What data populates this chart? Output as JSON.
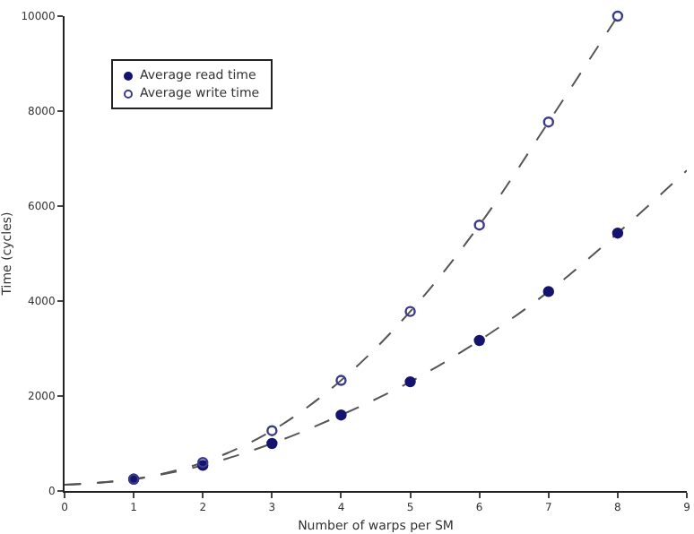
{
  "chart_data": {
    "type": "scatter",
    "xlabel": "Number of warps per SM",
    "ylabel": "Time (cycles)",
    "xlim": [
      0,
      9
    ],
    "xticks": [
      0,
      1,
      2,
      3,
      4,
      5,
      6,
      7,
      8,
      9
    ],
    "ylim": [
      0,
      10000
    ],
    "yticks": [
      0,
      2000,
      4000,
      6000,
      8000,
      10000
    ],
    "grid": false,
    "legend": "top left",
    "series": [
      {
        "name": "Average read time",
        "color": "#14146e",
        "marker": "circle",
        "x": [
          1,
          2,
          3,
          4,
          5,
          6,
          7,
          8
        ],
        "values": [
          250,
          540,
          1000,
          1600,
          2300,
          3170,
          4200,
          5430
        ]
      },
      {
        "name": "Average write time",
        "color": "#3a3a8c",
        "marker": "circle-open",
        "x": [
          1,
          2,
          3,
          4,
          5,
          6,
          7,
          8
        ],
        "values": [
          250,
          600,
          1270,
          2330,
          3780,
          5600,
          7770,
          10000
        ]
      },
      {
        "type": "line",
        "color": "#555555",
        "line_style": "dashed",
        "x": [
          0,
          1,
          2,
          3,
          4,
          5,
          6,
          7,
          8,
          9
        ],
        "values": [
          130,
          250,
          540,
          1000,
          1600,
          2300,
          3170,
          4200,
          5430,
          6750
        ]
      },
      {
        "type": "line",
        "color": "#555555",
        "line_style": "dashed",
        "x": [
          0,
          1,
          2,
          3,
          4,
          5,
          6,
          7,
          8
        ],
        "values": [
          130,
          250,
          600,
          1270,
          2330,
          3780,
          5600,
          7770,
          10000
        ]
      }
    ]
  }
}
